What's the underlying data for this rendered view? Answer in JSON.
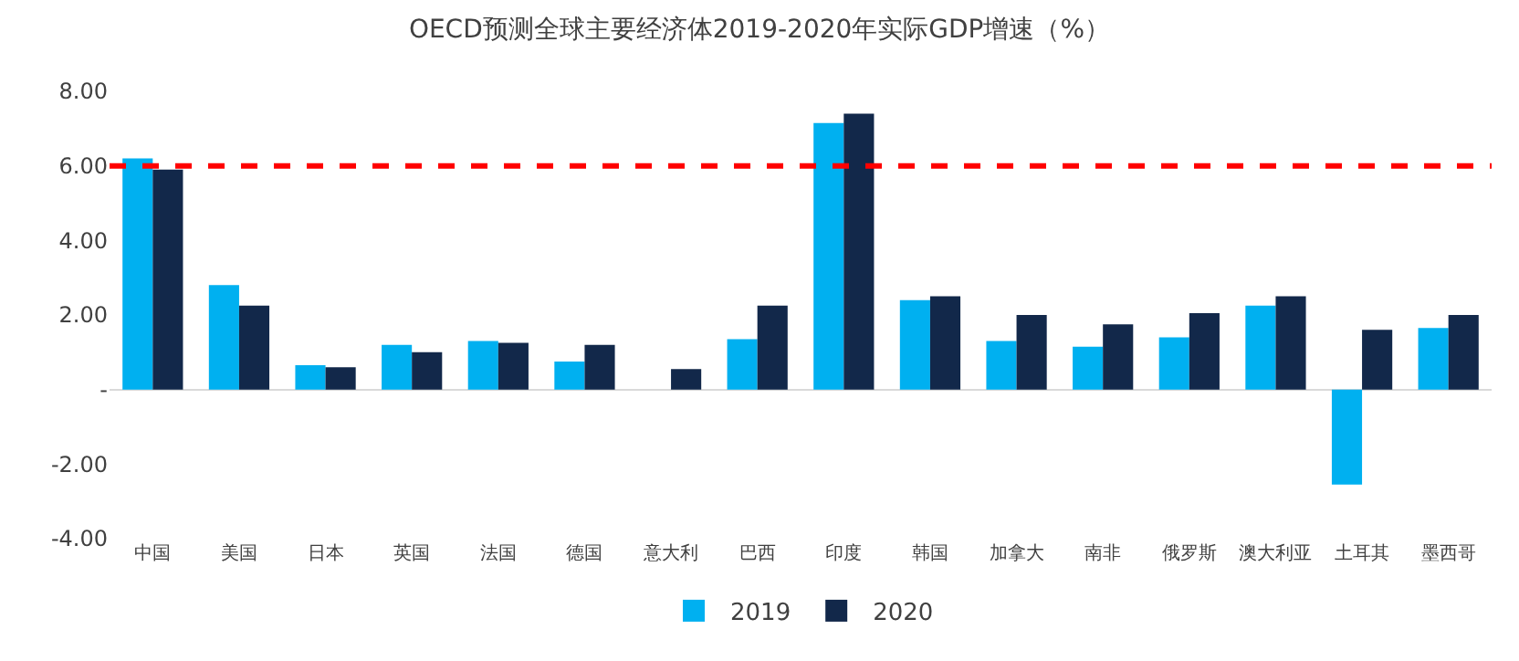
{
  "chart_data": {
    "type": "bar",
    "title": "OECD预测全球主要经济体2019-2020年实际GDP增速（%）",
    "categories": [
      "中国",
      "美国",
      "日本",
      "英国",
      "法国",
      "德国",
      "意大利",
      "巴西",
      "印度",
      "韩国",
      "加拿大",
      "南非",
      "俄罗斯",
      "澳大利亚",
      "土耳其",
      "墨西哥"
    ],
    "series": [
      {
        "name": "2019",
        "color": "#00b0f0",
        "values": [
          6.2,
          2.8,
          0.65,
          1.2,
          1.3,
          0.75,
          0,
          1.35,
          7.15,
          2.4,
          1.3,
          1.15,
          1.4,
          2.25,
          -2.55,
          1.65
        ]
      },
      {
        "name": "2020",
        "color": "#12284a",
        "values": [
          5.9,
          2.25,
          0.6,
          1.0,
          1.25,
          1.2,
          0.55,
          2.25,
          7.4,
          2.5,
          2.0,
          1.75,
          2.05,
          2.5,
          1.6,
          2.0
        ]
      }
    ],
    "ylim": [
      -4,
      8
    ],
    "yticks": [
      {
        "value": -4,
        "label": "-4.00"
      },
      {
        "value": -2,
        "label": "-2.00"
      },
      {
        "value": 0,
        "label": "-"
      },
      {
        "value": 2,
        "label": "2.00"
      },
      {
        "value": 4,
        "label": "4.00"
      },
      {
        "value": 6,
        "label": "6.00"
      },
      {
        "value": 8,
        "label": "8.00"
      }
    ],
    "ref_lines": [
      {
        "axis": "y",
        "value": 6,
        "color": "#ff0000",
        "line_style": "dashed"
      }
    ],
    "grid": false,
    "legend": "bottom"
  }
}
